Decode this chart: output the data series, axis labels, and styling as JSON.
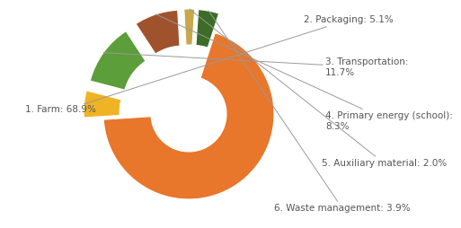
{
  "labels": [
    "1. Farm: 68.9%",
    "2. Packaging: 5.1%",
    "3. Transportation:\n11.7%",
    "4. Primary energy (school):\n8.3%",
    "5. Auxiliary material: 2.0%",
    "6. Waste management: 3.9%"
  ],
  "values": [
    68.9,
    5.1,
    11.7,
    8.3,
    2.0,
    3.9
  ],
  "colors": [
    "#E8762B",
    "#F0B323",
    "#5C9E3A",
    "#A0522D",
    "#C8A84B",
    "#3D6B28"
  ],
  "explode_small": 0.22,
  "background_color": "#ffffff",
  "font_size": 7.5,
  "annotation_font_size": 7.5
}
